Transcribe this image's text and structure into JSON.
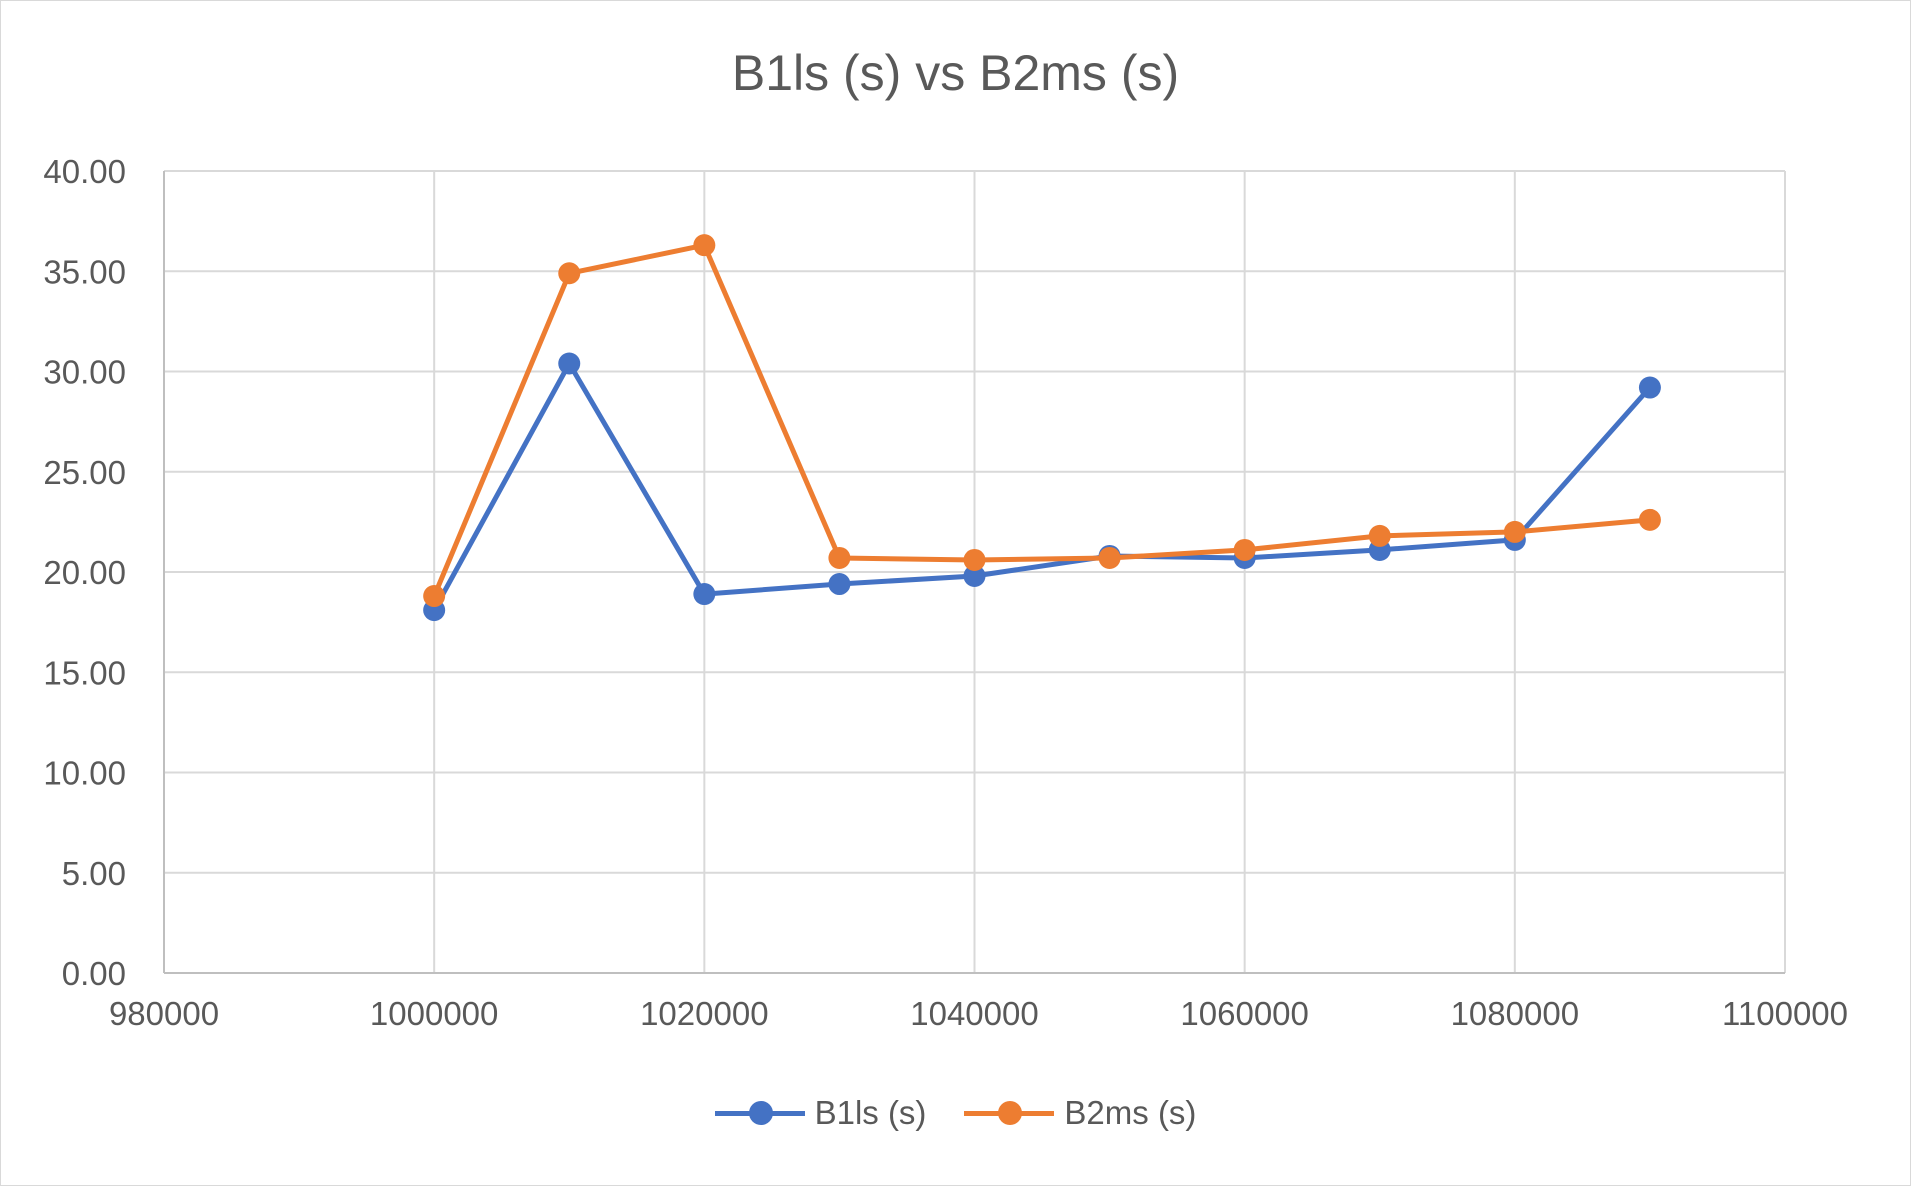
{
  "chart_data": {
    "type": "line",
    "title": "B1ls (s) vs B2ms (s)",
    "xlabel": "",
    "ylabel": "",
    "xlim": [
      980000,
      1100000
    ],
    "ylim": [
      0,
      40
    ],
    "x_ticks": [
      "980000",
      "1000000",
      "1020000",
      "1040000",
      "1060000",
      "1080000",
      "1100000"
    ],
    "x_tick_values": [
      980000,
      1000000,
      1020000,
      1040000,
      1060000,
      1080000,
      1100000
    ],
    "y_ticks": [
      "0.00",
      "5.00",
      "10.00",
      "15.00",
      "20.00",
      "25.00",
      "30.00",
      "35.00",
      "40.00"
    ],
    "y_tick_values": [
      0,
      5,
      10,
      15,
      20,
      25,
      30,
      35,
      40
    ],
    "x": [
      1000000,
      1010000,
      1020000,
      1030000,
      1040000,
      1050000,
      1060000,
      1070000,
      1080000,
      1090000
    ],
    "series": [
      {
        "name": "B1ls (s)",
        "color": "#4472C4",
        "values": [
          18.1,
          30.4,
          18.9,
          19.4,
          19.8,
          20.8,
          20.7,
          21.1,
          21.6,
          29.2
        ]
      },
      {
        "name": "B2ms (s)",
        "color": "#ED7D31",
        "values": [
          18.8,
          34.9,
          36.3,
          20.7,
          20.6,
          20.7,
          21.1,
          21.8,
          22.0,
          22.6
        ]
      }
    ],
    "grid": true,
    "legend_position": "bottom"
  }
}
